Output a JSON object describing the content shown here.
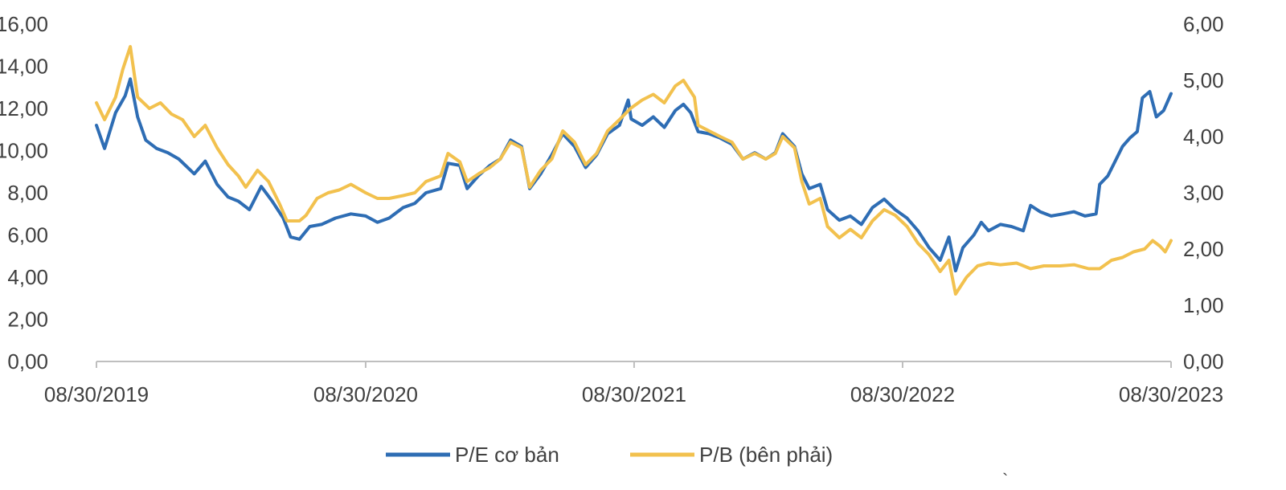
{
  "chart_data": {
    "type": "line",
    "title": "",
    "xlabel": "",
    "ylabel": "",
    "x_ticks": [
      "08/30/2019",
      "08/30/2020",
      "08/30/2021",
      "08/30/2022",
      "08/30/2023"
    ],
    "x_range": [
      "2019-08-30",
      "2023-08-30"
    ],
    "y_left": {
      "range": [
        0,
        16
      ],
      "ticks": [
        "0,00",
        "2,00",
        "4,00",
        "6,00",
        "8,00",
        "10,00",
        "12,00",
        "14,00",
        "16,00"
      ]
    },
    "y_right": {
      "range": [
        0,
        6
      ],
      "ticks": [
        "0,00",
        "1,00",
        "2,00",
        "3,00",
        "4,00",
        "5,00",
        "6,00"
      ]
    },
    "grid": false,
    "legend_placement": "bottom-center",
    "series": [
      {
        "name": "P/E cơ bản",
        "axis": "left",
        "color": "#2E6DB4",
        "points": [
          [
            "2019-08-30",
            11.2
          ],
          [
            "2019-09-10",
            10.1
          ],
          [
            "2019-09-25",
            11.8
          ],
          [
            "2019-10-08",
            12.6
          ],
          [
            "2019-10-15",
            13.4
          ],
          [
            "2019-10-25",
            11.6
          ],
          [
            "2019-11-05",
            10.5
          ],
          [
            "2019-11-20",
            10.1
          ],
          [
            "2019-12-05",
            9.9
          ],
          [
            "2019-12-20",
            9.6
          ],
          [
            "2020-01-10",
            8.9
          ],
          [
            "2020-01-25",
            9.5
          ],
          [
            "2020-02-10",
            8.4
          ],
          [
            "2020-02-25",
            7.8
          ],
          [
            "2020-03-10",
            7.6
          ],
          [
            "2020-03-25",
            7.2
          ],
          [
            "2020-04-10",
            8.3
          ],
          [
            "2020-04-25",
            7.6
          ],
          [
            "2020-05-10",
            6.8
          ],
          [
            "2020-05-20",
            5.9
          ],
          [
            "2020-06-01",
            5.8
          ],
          [
            "2020-06-15",
            6.4
          ],
          [
            "2020-07-01",
            6.5
          ],
          [
            "2020-07-20",
            6.8
          ],
          [
            "2020-08-10",
            7.0
          ],
          [
            "2020-08-30",
            6.9
          ],
          [
            "2020-09-15",
            6.6
          ],
          [
            "2020-10-01",
            6.8
          ],
          [
            "2020-10-20",
            7.3
          ],
          [
            "2020-11-05",
            7.5
          ],
          [
            "2020-11-20",
            8.0
          ],
          [
            "2020-12-10",
            8.2
          ],
          [
            "2020-12-20",
            9.4
          ],
          [
            "2021-01-05",
            9.3
          ],
          [
            "2021-01-15",
            8.2
          ],
          [
            "2021-01-30",
            8.8
          ],
          [
            "2021-02-15",
            9.3
          ],
          [
            "2021-03-01",
            9.6
          ],
          [
            "2021-03-15",
            10.5
          ],
          [
            "2021-03-30",
            10.2
          ],
          [
            "2021-04-10",
            8.2
          ],
          [
            "2021-04-25",
            8.9
          ],
          [
            "2021-05-10",
            9.8
          ],
          [
            "2021-05-25",
            10.8
          ],
          [
            "2021-06-10",
            10.2
          ],
          [
            "2021-06-25",
            9.2
          ],
          [
            "2021-07-10",
            9.8
          ],
          [
            "2021-07-25",
            10.8
          ],
          [
            "2021-08-10",
            11.2
          ],
          [
            "2021-08-22",
            12.4
          ],
          [
            "2021-08-26",
            11.5
          ],
          [
            "2021-09-10",
            11.2
          ],
          [
            "2021-09-25",
            11.6
          ],
          [
            "2021-10-10",
            11.1
          ],
          [
            "2021-10-25",
            11.9
          ],
          [
            "2021-11-05",
            12.2
          ],
          [
            "2021-11-15",
            11.8
          ],
          [
            "2021-11-25",
            10.9
          ],
          [
            "2021-12-10",
            10.8
          ],
          [
            "2021-12-25",
            10.6
          ],
          [
            "2022-01-10",
            10.3
          ],
          [
            "2022-01-25",
            9.6
          ],
          [
            "2022-02-10",
            9.9
          ],
          [
            "2022-02-25",
            9.6
          ],
          [
            "2022-03-10",
            9.9
          ],
          [
            "2022-03-20",
            10.8
          ],
          [
            "2022-04-05",
            10.2
          ],
          [
            "2022-04-15",
            8.9
          ],
          [
            "2022-04-25",
            8.2
          ],
          [
            "2022-05-10",
            8.4
          ],
          [
            "2022-05-20",
            7.2
          ],
          [
            "2022-06-05",
            6.7
          ],
          [
            "2022-06-20",
            6.9
          ],
          [
            "2022-07-05",
            6.5
          ],
          [
            "2022-07-20",
            7.3
          ],
          [
            "2022-08-05",
            7.7
          ],
          [
            "2022-08-20",
            7.2
          ],
          [
            "2022-09-05",
            6.8
          ],
          [
            "2022-09-20",
            6.2
          ],
          [
            "2022-10-05",
            5.4
          ],
          [
            "2022-10-20",
            4.8
          ],
          [
            "2022-11-01",
            5.9
          ],
          [
            "2022-11-10",
            4.3
          ],
          [
            "2022-11-20",
            5.4
          ],
          [
            "2022-12-05",
            6.0
          ],
          [
            "2022-12-15",
            6.6
          ],
          [
            "2022-12-25",
            6.2
          ],
          [
            "2023-01-10",
            6.5
          ],
          [
            "2023-01-25",
            6.4
          ],
          [
            "2023-02-10",
            6.2
          ],
          [
            "2023-02-20",
            7.4
          ],
          [
            "2023-03-05",
            7.1
          ],
          [
            "2023-03-20",
            6.9
          ],
          [
            "2023-04-05",
            7.0
          ],
          [
            "2023-04-20",
            7.1
          ],
          [
            "2023-05-05",
            6.9
          ],
          [
            "2023-05-20",
            7.0
          ],
          [
            "2023-05-25",
            8.4
          ],
          [
            "2023-06-05",
            8.8
          ],
          [
            "2023-06-15",
            9.5
          ],
          [
            "2023-06-25",
            10.2
          ],
          [
            "2023-07-05",
            10.6
          ],
          [
            "2023-07-15",
            10.9
          ],
          [
            "2023-07-22",
            12.5
          ],
          [
            "2023-08-01",
            12.8
          ],
          [
            "2023-08-10",
            11.6
          ],
          [
            "2023-08-20",
            11.9
          ],
          [
            "2023-08-30",
            12.7
          ]
        ]
      },
      {
        "name": "P/B (bên phải)",
        "axis": "right",
        "color": "#F2C14E",
        "points": [
          [
            "2019-08-30",
            4.6
          ],
          [
            "2019-09-10",
            4.3
          ],
          [
            "2019-09-25",
            4.7
          ],
          [
            "2019-10-05",
            5.2
          ],
          [
            "2019-10-15",
            5.6
          ],
          [
            "2019-10-25",
            4.7
          ],
          [
            "2019-11-10",
            4.5
          ],
          [
            "2019-11-25",
            4.6
          ],
          [
            "2019-12-10",
            4.4
          ],
          [
            "2019-12-25",
            4.3
          ],
          [
            "2020-01-10",
            4.0
          ],
          [
            "2020-01-25",
            4.2
          ],
          [
            "2020-02-10",
            3.8
          ],
          [
            "2020-02-25",
            3.5
          ],
          [
            "2020-03-10",
            3.3
          ],
          [
            "2020-03-20",
            3.1
          ],
          [
            "2020-04-05",
            3.4
          ],
          [
            "2020-04-20",
            3.2
          ],
          [
            "2020-05-05",
            2.8
          ],
          [
            "2020-05-15",
            2.5
          ],
          [
            "2020-06-01",
            2.5
          ],
          [
            "2020-06-10",
            2.6
          ],
          [
            "2020-06-25",
            2.9
          ],
          [
            "2020-07-10",
            3.0
          ],
          [
            "2020-07-25",
            3.05
          ],
          [
            "2020-08-10",
            3.15
          ],
          [
            "2020-08-30",
            3.0
          ],
          [
            "2020-09-15",
            2.9
          ],
          [
            "2020-10-01",
            2.9
          ],
          [
            "2020-10-20",
            2.95
          ],
          [
            "2020-11-05",
            3.0
          ],
          [
            "2020-11-20",
            3.2
          ],
          [
            "2020-12-10",
            3.3
          ],
          [
            "2020-12-20",
            3.7
          ],
          [
            "2021-01-05",
            3.55
          ],
          [
            "2021-01-15",
            3.2
          ],
          [
            "2021-02-01",
            3.35
          ],
          [
            "2021-02-15",
            3.45
          ],
          [
            "2021-03-01",
            3.6
          ],
          [
            "2021-03-15",
            3.9
          ],
          [
            "2021-03-30",
            3.8
          ],
          [
            "2021-04-10",
            3.1
          ],
          [
            "2021-04-25",
            3.4
          ],
          [
            "2021-05-10",
            3.6
          ],
          [
            "2021-05-25",
            4.1
          ],
          [
            "2021-06-10",
            3.9
          ],
          [
            "2021-06-25",
            3.5
          ],
          [
            "2021-07-10",
            3.7
          ],
          [
            "2021-07-25",
            4.1
          ],
          [
            "2021-08-10",
            4.3
          ],
          [
            "2021-08-25",
            4.5
          ],
          [
            "2021-09-10",
            4.65
          ],
          [
            "2021-09-25",
            4.75
          ],
          [
            "2021-10-10",
            4.6
          ],
          [
            "2021-10-25",
            4.9
          ],
          [
            "2021-11-05",
            5.0
          ],
          [
            "2021-11-20",
            4.7
          ],
          [
            "2021-11-25",
            4.2
          ],
          [
            "2021-12-10",
            4.1
          ],
          [
            "2021-12-25",
            4.0
          ],
          [
            "2022-01-10",
            3.9
          ],
          [
            "2022-01-25",
            3.6
          ],
          [
            "2022-02-10",
            3.7
          ],
          [
            "2022-02-25",
            3.6
          ],
          [
            "2022-03-10",
            3.7
          ],
          [
            "2022-03-20",
            4.0
          ],
          [
            "2022-04-05",
            3.8
          ],
          [
            "2022-04-15",
            3.2
          ],
          [
            "2022-04-25",
            2.8
          ],
          [
            "2022-05-10",
            2.9
          ],
          [
            "2022-05-20",
            2.4
          ],
          [
            "2022-06-05",
            2.2
          ],
          [
            "2022-06-20",
            2.35
          ],
          [
            "2022-07-05",
            2.2
          ],
          [
            "2022-07-20",
            2.5
          ],
          [
            "2022-08-05",
            2.7
          ],
          [
            "2022-08-20",
            2.6
          ],
          [
            "2022-09-05",
            2.4
          ],
          [
            "2022-09-20",
            2.1
          ],
          [
            "2022-10-05",
            1.9
          ],
          [
            "2022-10-20",
            1.6
          ],
          [
            "2022-11-01",
            1.8
          ],
          [
            "2022-11-10",
            1.2
          ],
          [
            "2022-11-25",
            1.5
          ],
          [
            "2022-12-10",
            1.7
          ],
          [
            "2022-12-25",
            1.75
          ],
          [
            "2023-01-10",
            1.72
          ],
          [
            "2023-02-01",
            1.75
          ],
          [
            "2023-02-20",
            1.65
          ],
          [
            "2023-03-10",
            1.7
          ],
          [
            "2023-04-01",
            1.7
          ],
          [
            "2023-04-20",
            1.72
          ],
          [
            "2023-05-10",
            1.65
          ],
          [
            "2023-05-25",
            1.65
          ],
          [
            "2023-06-10",
            1.8
          ],
          [
            "2023-06-25",
            1.85
          ],
          [
            "2023-07-10",
            1.95
          ],
          [
            "2023-07-25",
            2.0
          ],
          [
            "2023-08-05",
            2.15
          ],
          [
            "2023-08-15",
            2.05
          ],
          [
            "2023-08-22",
            1.95
          ],
          [
            "2023-08-30",
            2.15
          ]
        ]
      }
    ]
  },
  "annotations": {
    "stray_mark": "`"
  }
}
